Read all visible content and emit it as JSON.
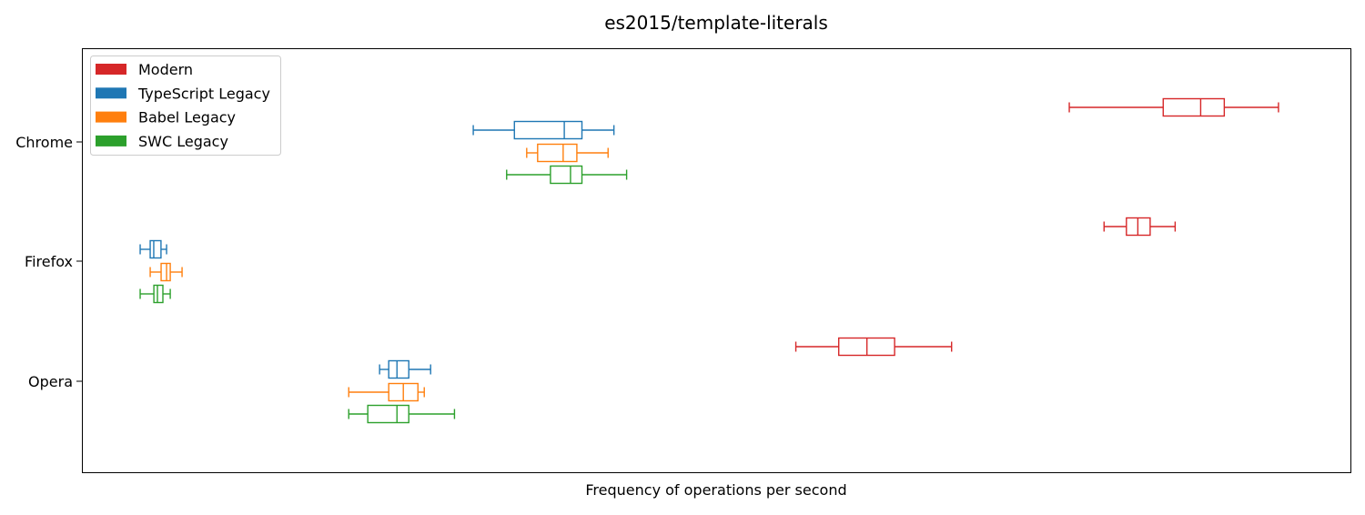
{
  "chart_data": {
    "type": "boxplot",
    "orientation": "horizontal",
    "title": "es2015/template-literals",
    "xlabel": "Frequency of operations per second",
    "ylabel": "",
    "x_ticks_shown": false,
    "x_range_note": "x-axis has no tick labels; values below are relative positions (0–1) across the plotted range",
    "xlim": [
      0,
      1
    ],
    "grid": false,
    "legend_position": "top-left",
    "categories": [
      "Chrome",
      "Firefox",
      "Opera"
    ],
    "series": [
      {
        "name": "Modern",
        "color": "#d62728",
        "boxes": [
          {
            "whislo": 0.7778,
            "q1": 0.8518,
            "med": 0.8813,
            "q3": 0.8999,
            "whishi": 0.9426
          },
          {
            "whislo": 0.8052,
            "q1": 0.8228,
            "med": 0.8318,
            "q3": 0.8415,
            "whishi": 0.8612
          },
          {
            "whislo": 0.5624,
            "q1": 0.5962,
            "med": 0.6184,
            "q3": 0.6402,
            "whishi": 0.6851
          }
        ]
      },
      {
        "name": "TypeScript Legacy",
        "color": "#1f77b4",
        "boxes": [
          {
            "whislo": 0.3083,
            "q1": 0.3407,
            "med": 0.38,
            "q3": 0.3939,
            "whishi": 0.4191
          },
          {
            "whislo": 0.0459,
            "q1": 0.0538,
            "med": 0.0566,
            "q3": 0.0623,
            "whishi": 0.0667
          },
          {
            "whislo": 0.2345,
            "q1": 0.2417,
            "med": 0.2482,
            "q3": 0.2575,
            "whishi": 0.2747
          }
        ]
      },
      {
        "name": "Babel Legacy",
        "color": "#ff7f0e",
        "boxes": [
          {
            "whislo": 0.3504,
            "q1": 0.359,
            "med": 0.3791,
            "q3": 0.3899,
            "whishi": 0.4145
          },
          {
            "whislo": 0.0538,
            "q1": 0.0624,
            "med": 0.0667,
            "q3": 0.0696,
            "whishi": 0.0789
          },
          {
            "whislo": 0.2102,
            "q1": 0.2417,
            "med": 0.2532,
            "q3": 0.2647,
            "whishi": 0.2697
          }
        ]
      },
      {
        "name": "SWC Legacy",
        "color": "#2ca02c",
        "boxes": [
          {
            "whislo": 0.3346,
            "q1": 0.3691,
            "med": 0.3849,
            "q3": 0.3939,
            "whishi": 0.4291
          },
          {
            "whislo": 0.0459,
            "q1": 0.0567,
            "med": 0.0595,
            "q3": 0.0638,
            "whishi": 0.0696
          },
          {
            "whislo": 0.2102,
            "q1": 0.2252,
            "med": 0.2482,
            "q3": 0.2575,
            "whishi": 0.2935
          }
        ]
      }
    ]
  }
}
